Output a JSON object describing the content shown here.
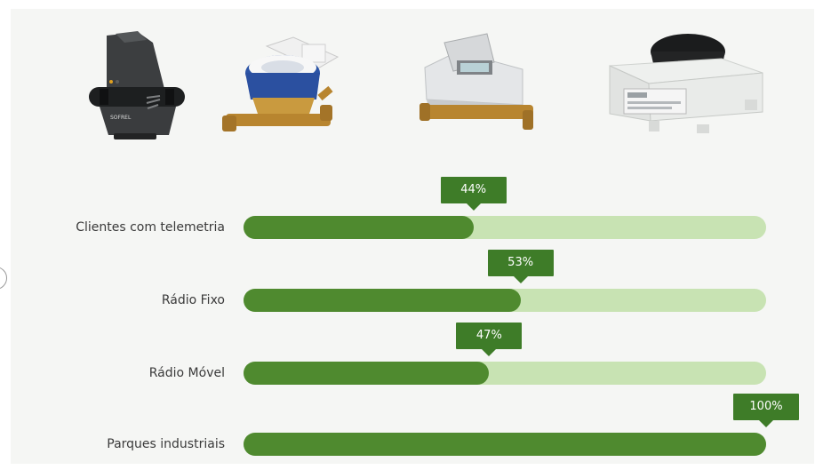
{
  "chart_data": {
    "type": "bar",
    "orientation": "horizontal",
    "categories": [
      "Clientes com telemetria",
      "Rádio Fixo",
      "Rádio Móvel",
      "Parques industriais"
    ],
    "values": [
      44,
      53,
      47,
      100
    ],
    "value_labels": [
      "44%",
      "53%",
      "47%",
      "100%"
    ],
    "xlim": [
      0,
      100
    ],
    "title": "",
    "xlabel": "",
    "ylabel": "",
    "grid": false,
    "legend": "none"
  },
  "colors": {
    "fill": "#4f8a2f",
    "track": "#c8e3b3",
    "callout": "#3e7c28",
    "label_text": "#3a3a3a"
  },
  "products": [
    {
      "name": "telemetry-logger-icon",
      "label": "SOFREL"
    },
    {
      "name": "water-meter-blue-icon"
    },
    {
      "name": "water-meter-gray-icon"
    },
    {
      "name": "radio-receiver-box-icon"
    }
  ]
}
